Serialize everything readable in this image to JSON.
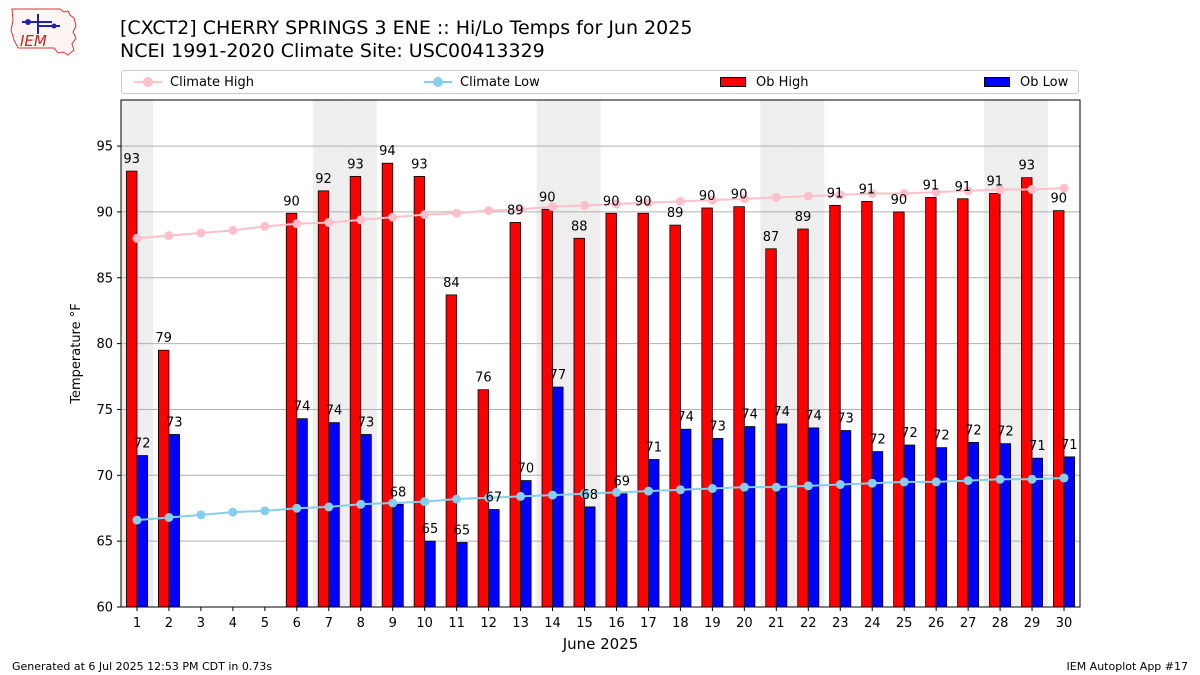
{
  "header": {
    "logo_text": "IEM",
    "title_line1": "[CXCT2] CHERRY SPRINGS 3 ENE :: Hi/Lo Temps for Jun 2025",
    "title_line2": "NCEI 1991-2020 Climate Site: USC00413329"
  },
  "legend": {
    "placement": "top",
    "items": [
      {
        "label": "Climate High",
        "type": "line-marker",
        "color": "#ffc0cb"
      },
      {
        "label": "Climate Low",
        "type": "line-marker",
        "color": "#87ceeb"
      },
      {
        "label": "Ob High",
        "type": "bar",
        "color": "#ff0000"
      },
      {
        "label": "Ob Low",
        "type": "bar",
        "color": "#0000ff"
      }
    ]
  },
  "footer": {
    "left": "Generated at 6 Jul 2025 12:53 PM CDT in 0.73s",
    "right": "IEM Autoplot App #17"
  },
  "chart_data": {
    "type": "bar",
    "xlabel": "June 2025",
    "ylabel": "Temperature °F",
    "ylim": [
      60,
      98.5
    ],
    "xlim": [
      0.5,
      30.5
    ],
    "yticks": [
      60,
      65,
      70,
      75,
      80,
      85,
      90,
      95
    ],
    "grid": "horizontal",
    "weekend_shading_days": [
      1,
      7,
      8,
      14,
      15,
      21,
      22,
      28,
      29
    ],
    "days": [
      1,
      2,
      3,
      4,
      5,
      6,
      7,
      8,
      9,
      10,
      11,
      12,
      13,
      14,
      15,
      16,
      17,
      18,
      19,
      20,
      21,
      22,
      23,
      24,
      25,
      26,
      27,
      28,
      29,
      30
    ],
    "series": [
      {
        "name": "Ob High",
        "kind": "bar",
        "color": "#ff0000",
        "values": [
          93,
          79,
          null,
          null,
          null,
          90,
          92,
          93,
          94,
          93,
          84,
          76,
          89,
          90,
          88,
          90,
          90,
          89,
          90,
          90,
          87,
          89,
          91,
          91,
          90,
          91,
          91,
          91,
          93,
          90
        ],
        "plotted": [
          93.1,
          79.5,
          null,
          null,
          null,
          89.9,
          91.6,
          92.7,
          93.7,
          92.7,
          83.7,
          76.5,
          89.2,
          90.2,
          88.0,
          89.9,
          89.9,
          89.0,
          90.3,
          90.4,
          87.2,
          88.7,
          90.5,
          90.8,
          90.0,
          91.1,
          91.0,
          91.4,
          92.6,
          90.1
        ]
      },
      {
        "name": "Ob Low",
        "kind": "bar",
        "color": "#0000ff",
        "values": [
          72,
          73,
          null,
          null,
          null,
          74,
          74,
          73,
          68,
          65,
          65,
          67,
          70,
          77,
          68,
          69,
          71,
          74,
          73,
          74,
          74,
          74,
          73,
          72,
          72,
          72,
          72,
          72,
          71,
          71
        ],
        "plotted": [
          71.5,
          73.1,
          null,
          null,
          null,
          74.3,
          74.0,
          73.1,
          67.8,
          65.0,
          64.9,
          67.4,
          69.6,
          76.7,
          67.6,
          68.6,
          71.2,
          73.5,
          72.8,
          73.7,
          73.9,
          73.6,
          73.4,
          71.8,
          72.3,
          72.1,
          72.5,
          72.4,
          71.3,
          71.4
        ]
      },
      {
        "name": "Climate High",
        "kind": "line",
        "color": "#ffc0cb",
        "values": [
          88.0,
          88.2,
          88.4,
          88.6,
          88.9,
          89.1,
          89.2,
          89.4,
          89.6,
          89.8,
          89.9,
          90.1,
          90.2,
          90.4,
          90.5,
          90.6,
          90.7,
          90.8,
          90.9,
          91.0,
          91.1,
          91.2,
          91.3,
          91.4,
          91.4,
          91.5,
          91.6,
          91.7,
          91.7,
          91.8
        ]
      },
      {
        "name": "Climate Low",
        "kind": "line",
        "color": "#87ceeb",
        "values": [
          66.6,
          66.8,
          67.0,
          67.2,
          67.3,
          67.5,
          67.6,
          67.8,
          67.9,
          68.0,
          68.2,
          68.3,
          68.4,
          68.5,
          68.6,
          68.7,
          68.8,
          68.9,
          69.0,
          69.1,
          69.1,
          69.2,
          69.3,
          69.4,
          69.5,
          69.5,
          69.6,
          69.7,
          69.7,
          69.8
        ]
      }
    ]
  }
}
